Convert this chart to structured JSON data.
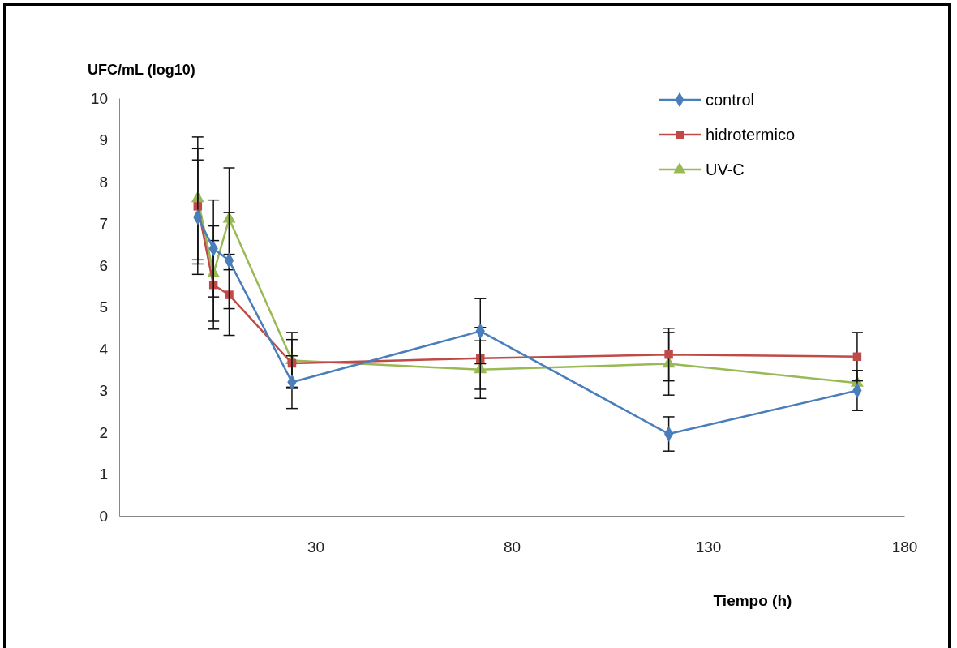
{
  "chart_data": {
    "type": "line",
    "ylabel": "UFC/mL (log10)",
    "xlabel": "Tiempo  (h)",
    "x": [
      0,
      4,
      8,
      24,
      72,
      120,
      168
    ],
    "xlim": [
      -20,
      180
    ],
    "xticks": [
      30,
      80,
      130,
      180
    ],
    "ylim": [
      0,
      10
    ],
    "yticks": [
      0,
      1,
      2,
      3,
      4,
      5,
      6,
      7,
      8,
      9,
      10
    ],
    "grid": false,
    "legend": "top right",
    "series": [
      {
        "name": "control",
        "color": "#4a7ebb",
        "marker": "diamond",
        "values": [
          7.15,
          6.4,
          6.11,
          3.2,
          4.42,
          1.96,
          3.0
        ],
        "errors": [
          1.37,
          1.16,
          1.15,
          0.63,
          0.78,
          0.41,
          0.48
        ]
      },
      {
        "name": "hidrotermico",
        "color": "#be4b48",
        "marker": "square",
        "values": [
          7.41,
          5.53,
          5.29,
          3.65,
          3.77,
          3.86,
          3.81
        ],
        "errors": [
          1.38,
          1.06,
          0.97,
          0.57,
          0.74,
          0.63,
          0.58
        ]
      },
      {
        "name": "UV-C",
        "color": "#98b954",
        "marker": "triangle",
        "values": [
          7.6,
          5.8,
          7.11,
          3.72,
          3.5,
          3.64,
          3.18
        ],
        "errors": [
          1.47,
          1.14,
          1.22,
          0.67,
          0.69,
          0.75,
          null
        ]
      }
    ]
  }
}
